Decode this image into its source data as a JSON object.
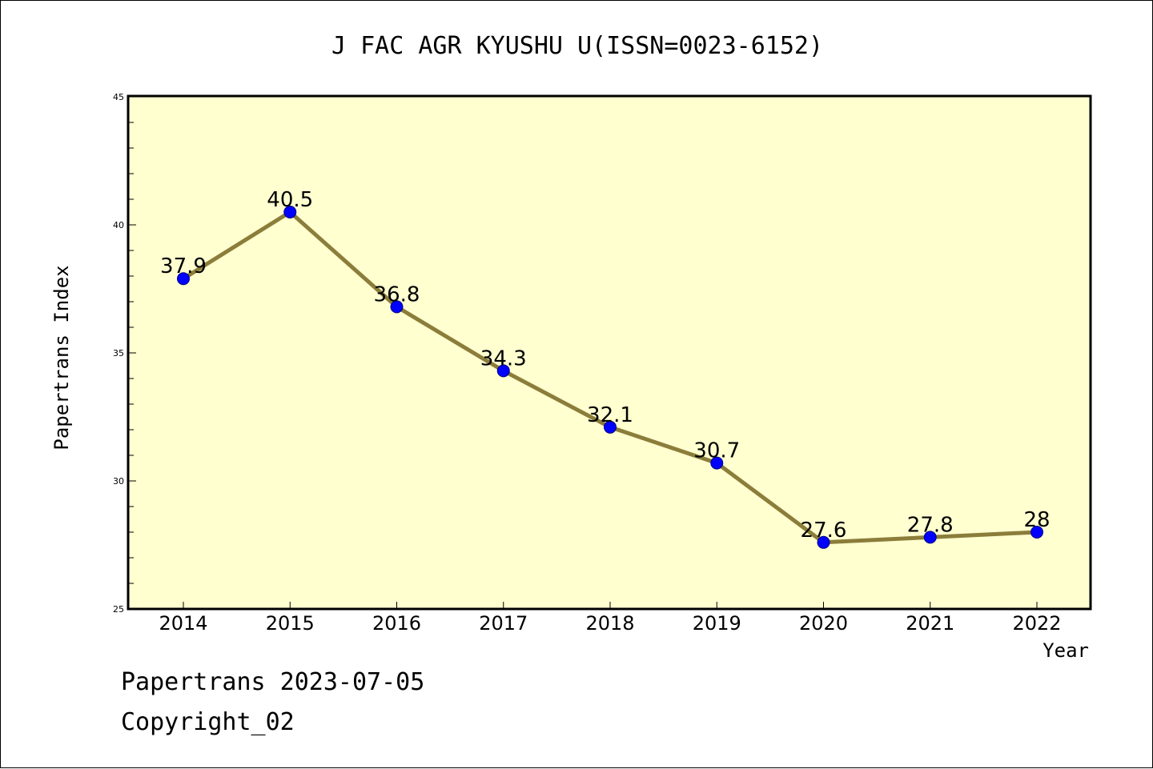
{
  "chart_data": {
    "type": "line",
    "title": "J FAC AGR KYUSHU U(ISSN=0023-6152)",
    "xlabel": "Year",
    "ylabel": "Papertrans Index",
    "x": [
      "2014",
      "2015",
      "2016",
      "2017",
      "2018",
      "2019",
      "2020",
      "2021",
      "2022"
    ],
    "series": [
      {
        "values": [
          37.9,
          40.5,
          36.8,
          34.3,
          32.1,
          30.7,
          27.6,
          27.8,
          28
        ],
        "labels": [
          "37.9",
          "40.5",
          "36.8",
          "34.3",
          "32.1",
          "30.7",
          "27.6",
          "27.8",
          "28"
        ],
        "line_color": "#8b7d3a",
        "marker_color": "#0000ff"
      }
    ],
    "ylim": [
      25,
      45
    ],
    "yticks": [
      "25",
      "30",
      "35",
      "40",
      "45"
    ],
    "plot_background": "#ffffd0",
    "grid": false,
    "legend": "none"
  },
  "footer": {
    "line1": "Papertrans 2023-07-05",
    "line2": "Copyright_02"
  }
}
